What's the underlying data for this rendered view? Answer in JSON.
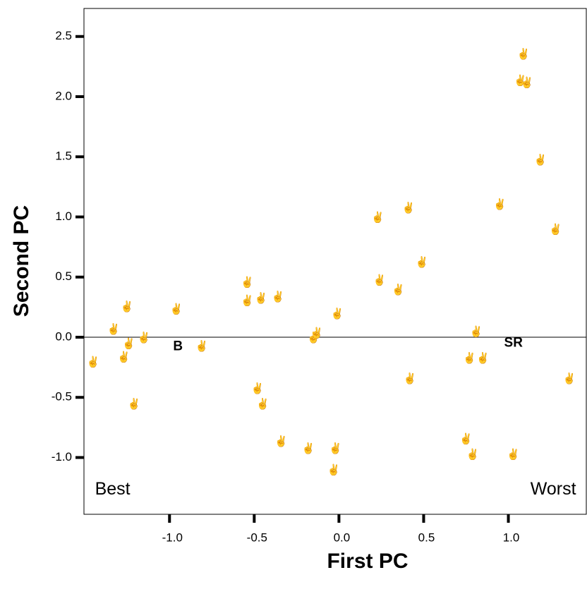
{
  "chart_data": {
    "type": "scatter",
    "x_label": "First PC",
    "y_label": "Second PC",
    "marker_symbol": "✌",
    "color": "#f08080",
    "xlim": [
      -1.505,
      1.46
    ],
    "ylim": [
      -1.472,
      2.733
    ],
    "xticks": [
      {
        "value": -1,
        "label": "-1.0"
      },
      {
        "value": -0.5,
        "label": "-0.5"
      },
      {
        "value": 0,
        "label": "0.0"
      },
      {
        "value": 0.5,
        "label": "0.5"
      },
      {
        "value": 1,
        "label": "1.0"
      }
    ],
    "yticks": [
      {
        "value": -1,
        "label": "-1.0"
      },
      {
        "value": -0.5,
        "label": "-0.5"
      },
      {
        "value": 0,
        "label": "0.0"
      },
      {
        "value": 0.5,
        "label": "0.5"
      },
      {
        "value": 1,
        "label": "1.0"
      },
      {
        "value": 1.5,
        "label": "1.5"
      },
      {
        "value": 2,
        "label": "2.0"
      },
      {
        "value": 2.5,
        "label": "2.5"
      }
    ],
    "hline": 0,
    "x": [
      -1.45,
      -1.33,
      -1.25,
      -1.27,
      -1.24,
      -1.15,
      -1.21,
      -0.96,
      -0.81,
      -0.54,
      -0.54,
      -0.46,
      -0.36,
      -0.48,
      -0.45,
      -0.34,
      -0.18,
      -0.15,
      -0.13,
      -0.01,
      -0.02,
      -0.03,
      0.23,
      0.24,
      0.35,
      0.41,
      0.49,
      0.42,
      0.75,
      0.79,
      0.77,
      0.81,
      0.85,
      0.95,
      1.03,
      1.09,
      1.07,
      1.11,
      1.19,
      1.28,
      1.36
    ],
    "y": [
      -0.21,
      0.06,
      0.25,
      -0.17,
      -0.06,
      -0.01,
      -0.56,
      0.23,
      -0.08,
      0.45,
      0.3,
      0.32,
      0.33,
      -0.43,
      -0.56,
      -0.87,
      -0.93,
      -0.01,
      0.03,
      0.19,
      -0.93,
      -1.11,
      0.99,
      0.47,
      0.39,
      1.07,
      0.62,
      -0.35,
      -0.85,
      -0.98,
      -0.18,
      0.04,
      -0.18,
      1.1,
      -0.98,
      2.35,
      2.13,
      2.11,
      1.47,
      0.89,
      -0.35
    ],
    "annotations": [
      {
        "text": "B",
        "x": -0.95,
        "y": -0.08,
        "bold": true
      },
      {
        "text": "SR",
        "x": 1.03,
        "y": -0.05,
        "bold": true
      },
      {
        "text": "Best",
        "x": -1.44,
        "y": -1.27,
        "bold": false
      },
      {
        "text": "Worst",
        "x": 1.4,
        "y": -1.27,
        "bold": false
      }
    ]
  }
}
